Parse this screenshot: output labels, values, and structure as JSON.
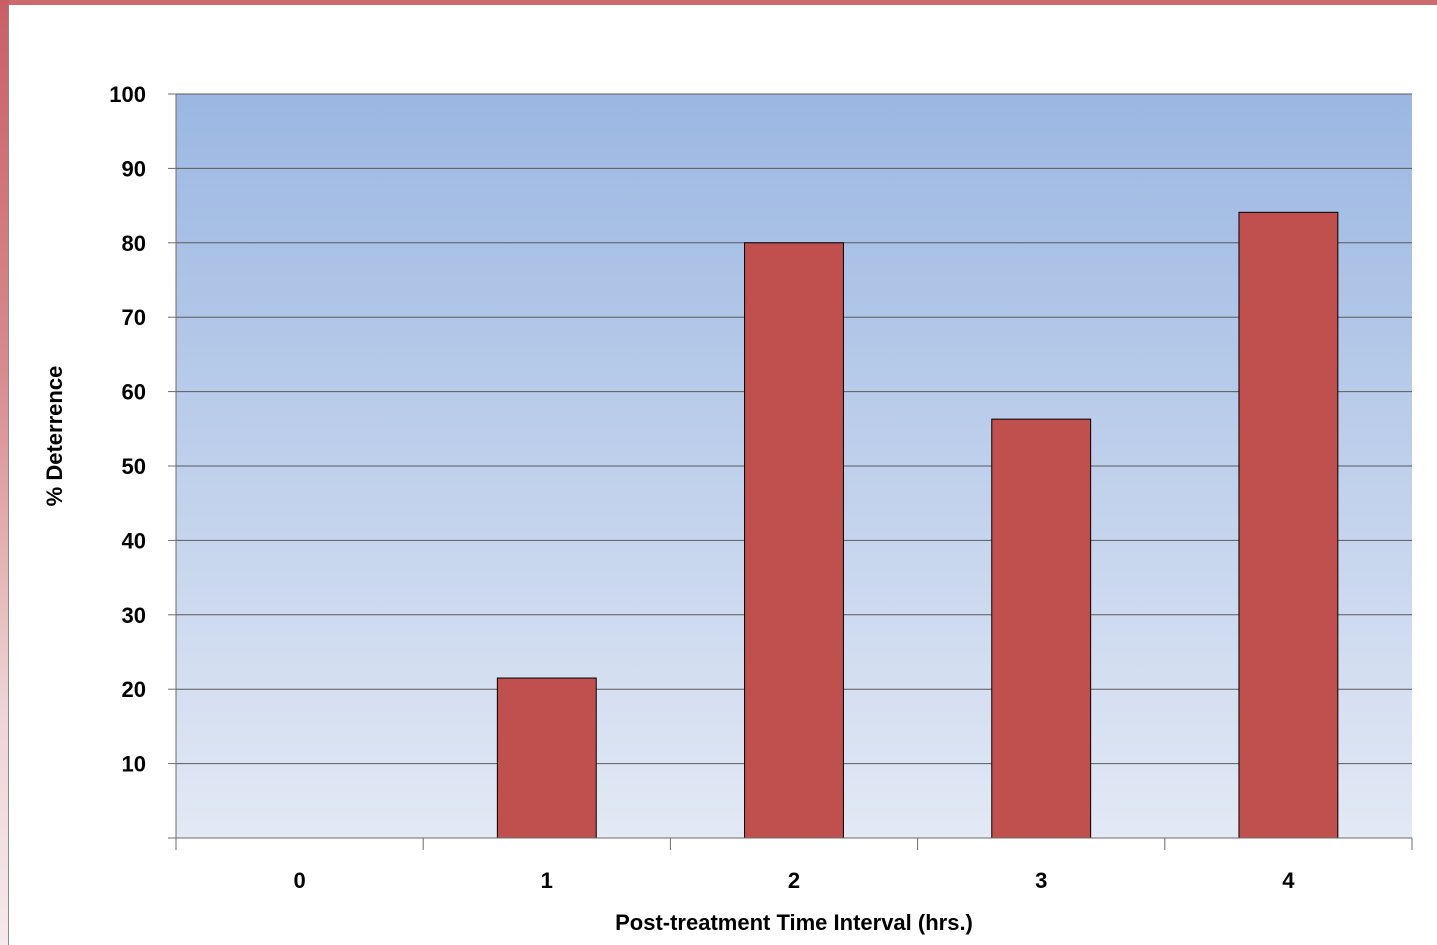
{
  "chart_data": {
    "type": "bar",
    "title": "",
    "xlabel": "Post-treatment Time Interval (hrs.)",
    "ylabel": "% Deterrence",
    "categories": [
      "0",
      "1",
      "2",
      "3",
      "4"
    ],
    "values": [
      0,
      21.5,
      80,
      56.3,
      84.1
    ],
    "ylim": [
      0,
      100
    ],
    "yticks": [
      "10",
      "20",
      "30",
      "40",
      "50",
      "60",
      "70",
      "80",
      "90",
      "100"
    ],
    "grid": true,
    "legend": "none",
    "colors": {
      "bar": "#c0504d",
      "bar_border": "#000000",
      "plot_bg_top": "#9bb7e2",
      "plot_bg_bottom": "#e3e9f5",
      "gridline": "#5a5a5a",
      "frame_accent": "#cd6b6f"
    }
  }
}
